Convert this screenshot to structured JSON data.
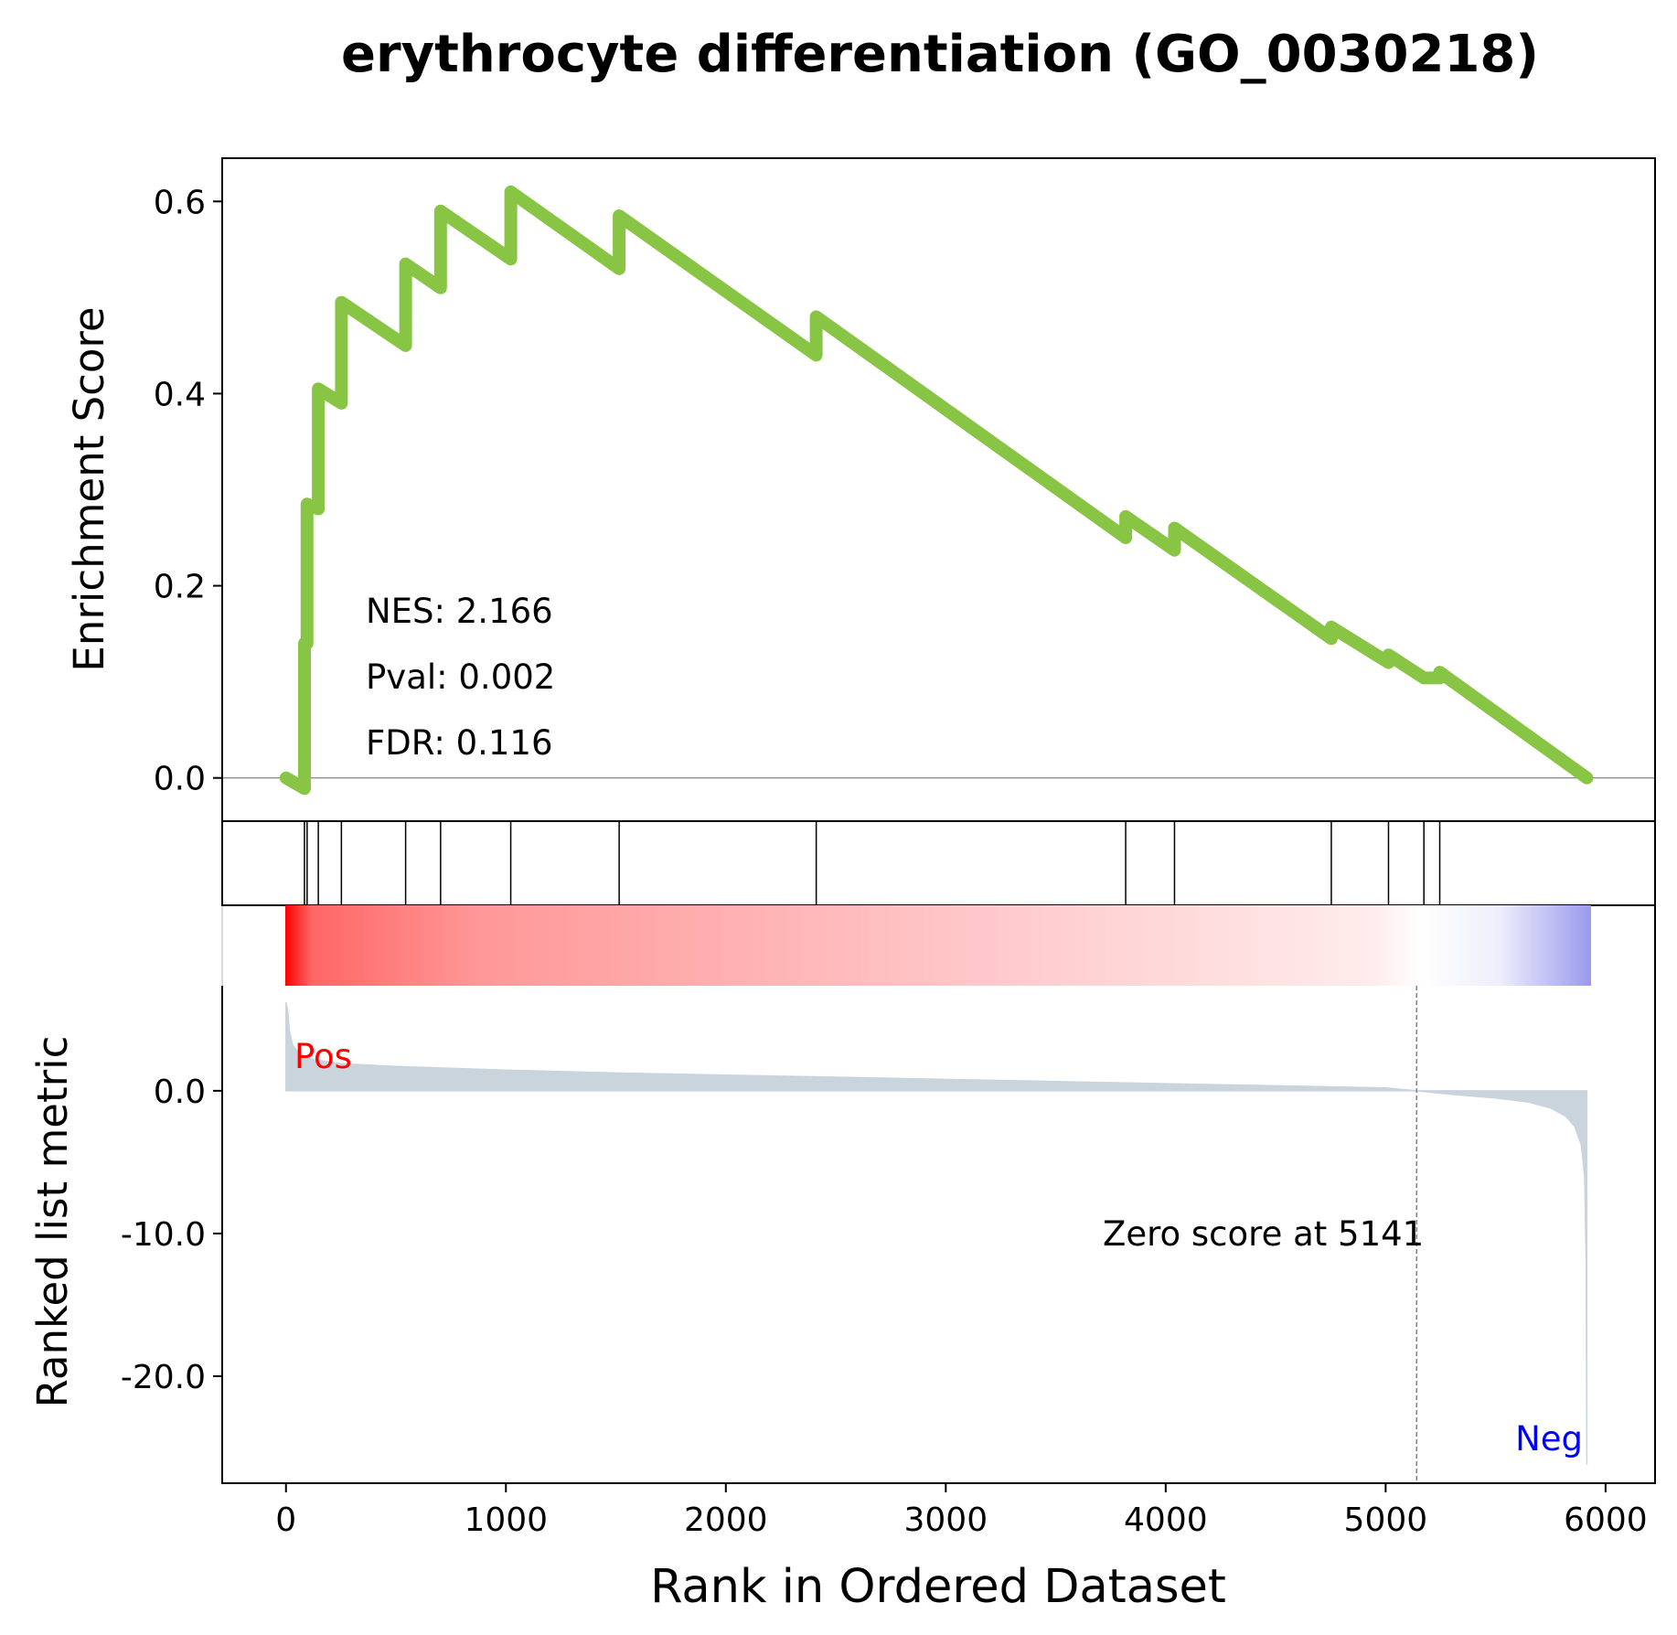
{
  "chart_data": {
    "type": "line",
    "title": "erythrocyte differentiation (GO_0030218)",
    "xlabel": "Rank in Ordered Dataset",
    "es_panel": {
      "ylabel": "Enrichment Score",
      "ylim": [
        -0.045,
        0.645
      ],
      "yticks": [
        0.0,
        0.2,
        0.4,
        0.6
      ],
      "ytick_labels": [
        "0.0",
        "0.2",
        "0.4",
        "0.6"
      ],
      "line_color": "#88c544",
      "zero_line_color": "#808080",
      "stats": {
        "nes": "NES: 2.166",
        "pval": "Pval: 0.002",
        "fdr": "FDR: 0.116"
      },
      "running_es": [
        [
          0,
          0.0
        ],
        [
          84,
          -0.011
        ],
        [
          84,
          0.14
        ],
        [
          96,
          0.14
        ],
        [
          96,
          0.285
        ],
        [
          147,
          0.28
        ],
        [
          147,
          0.405
        ],
        [
          252,
          0.39
        ],
        [
          252,
          0.495
        ],
        [
          544,
          0.45
        ],
        [
          544,
          0.535
        ],
        [
          703,
          0.51
        ],
        [
          703,
          0.59
        ],
        [
          1022,
          0.54
        ],
        [
          1022,
          0.61
        ],
        [
          1515,
          0.53
        ],
        [
          1515,
          0.585
        ],
        [
          2411,
          0.44
        ],
        [
          2411,
          0.48
        ],
        [
          3818,
          0.25
        ],
        [
          3818,
          0.272
        ],
        [
          4040,
          0.237
        ],
        [
          4040,
          0.26
        ],
        [
          4753,
          0.145
        ],
        [
          4753,
          0.157
        ],
        [
          5013,
          0.12
        ],
        [
          5013,
          0.128
        ],
        [
          5174,
          0.104
        ],
        [
          5246,
          0.104
        ],
        [
          5246,
          0.11
        ],
        [
          5915,
          0.0
        ]
      ]
    },
    "hits_panel": {
      "hit_ranks": [
        84,
        96,
        147,
        252,
        544,
        703,
        1022,
        1515,
        2411,
        3818,
        4040,
        4753,
        5013,
        5174,
        5246
      ]
    },
    "metric_panel": {
      "ylabel": "Ranked list metric",
      "ylim": [
        -27.5,
        13.0
      ],
      "yticks": [
        0.0,
        -10.0,
        -20.0
      ],
      "ytick_labels": [
        "0.0",
        "-10.0",
        "-20.0"
      ],
      "fill_color": "#c9d4dd",
      "gradient_positive_color": "#ff0000",
      "gradient_neutral_color": "#ffffff",
      "gradient_negative_color": "#0000ff",
      "pos_label": "Pos",
      "pos_color": "#ff0000",
      "neg_label": "Neg",
      "neg_color": "#0000ff",
      "zero_cross": 5141,
      "zero_label": "Zero score at 5141",
      "metric_curve": [
        [
          0,
          6.2
        ],
        [
          8,
          5.6
        ],
        [
          15,
          4.2
        ],
        [
          30,
          3.2
        ],
        [
          60,
          2.6
        ],
        [
          120,
          2.2
        ],
        [
          250,
          1.9
        ],
        [
          500,
          1.7
        ],
        [
          1000,
          1.45
        ],
        [
          1500,
          1.25
        ],
        [
          2000,
          1.1
        ],
        [
          2500,
          0.95
        ],
        [
          3000,
          0.8
        ],
        [
          3500,
          0.65
        ],
        [
          4000,
          0.5
        ],
        [
          4500,
          0.35
        ],
        [
          5000,
          0.2
        ],
        [
          5141,
          0.0
        ],
        [
          5300,
          -0.25
        ],
        [
          5500,
          -0.5
        ],
        [
          5650,
          -0.8
        ],
        [
          5750,
          -1.2
        ],
        [
          5820,
          -1.8
        ],
        [
          5860,
          -2.5
        ],
        [
          5890,
          -3.8
        ],
        [
          5905,
          -6.0
        ],
        [
          5912,
          -12.0
        ],
        [
          5915,
          -26.2
        ]
      ]
    },
    "xlim": [
      -290,
      6225
    ],
    "xticks": [
      0,
      1000,
      2000,
      3000,
      4000,
      5000,
      6000
    ],
    "xtick_labels": [
      "0",
      "1000",
      "2000",
      "3000",
      "4000",
      "5000",
      "6000"
    ]
  }
}
